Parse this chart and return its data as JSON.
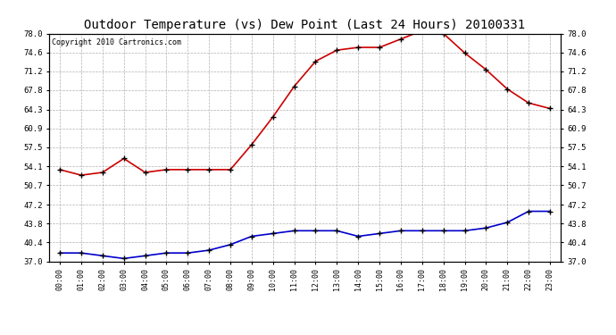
{
  "title": "Outdoor Temperature (vs) Dew Point (Last 24 Hours) 20100331",
  "copyright": "Copyright 2010 Cartronics.com",
  "hours": [
    "00:00",
    "01:00",
    "02:00",
    "03:00",
    "04:00",
    "05:00",
    "06:00",
    "07:00",
    "08:00",
    "09:00",
    "10:00",
    "11:00",
    "12:00",
    "13:00",
    "14:00",
    "15:00",
    "16:00",
    "17:00",
    "18:00",
    "19:00",
    "20:00",
    "21:00",
    "22:00",
    "23:00"
  ],
  "temp": [
    53.5,
    52.5,
    53.0,
    55.5,
    53.0,
    53.5,
    53.5,
    53.5,
    53.5,
    58.0,
    63.0,
    68.5,
    73.0,
    75.0,
    75.5,
    75.5,
    77.0,
    78.5,
    78.0,
    74.5,
    71.5,
    68.0,
    65.5,
    64.5
  ],
  "dew": [
    38.5,
    38.5,
    38.0,
    37.5,
    38.0,
    38.5,
    38.5,
    39.0,
    40.0,
    41.5,
    42.0,
    42.5,
    42.5,
    42.5,
    41.5,
    42.0,
    42.5,
    42.5,
    42.5,
    42.5,
    43.0,
    44.0,
    46.0,
    46.0
  ],
  "temp_color": "#cc0000",
  "dew_color": "#0000cc",
  "bg_color": "#ffffff",
  "plot_bg": "#ffffff",
  "grid_color": "#b0b0b0",
  "ylim": [
    37.0,
    78.0
  ],
  "yticks": [
    37.0,
    40.4,
    43.8,
    47.2,
    50.7,
    54.1,
    57.5,
    60.9,
    64.3,
    67.8,
    71.2,
    74.6,
    78.0
  ],
  "title_fontsize": 10,
  "copyright_fontsize": 6,
  "marker": "+",
  "marker_size": 5,
  "marker_color": "#000000",
  "line_width": 1.2,
  "figwidth": 6.9,
  "figheight": 3.75,
  "dpi": 100
}
